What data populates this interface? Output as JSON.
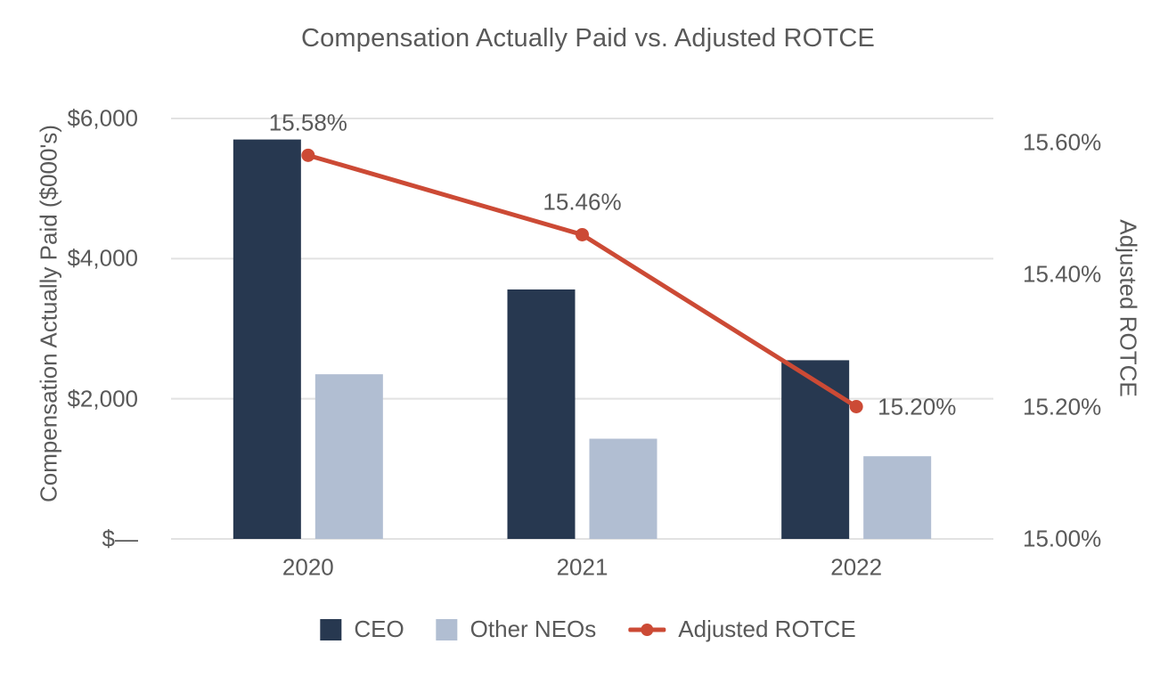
{
  "title": "Compensation Actually Paid vs. Adjusted ROTCE",
  "colors": {
    "ceo_bar": "#273850",
    "other_neos_bar": "#b1bed2",
    "rotce_line": "#cc4a35",
    "text": "#595959",
    "gridline": "#e2e2e2"
  },
  "chart_data": {
    "type": "bar+line combo",
    "title": "Compensation Actually Paid vs. Adjusted ROTCE",
    "categories": [
      "2020",
      "2021",
      "2022"
    ],
    "series": [
      {
        "name": "CEO",
        "type": "bar",
        "axis": "left",
        "color": "#273850",
        "values": [
          5700,
          3560,
          2550
        ]
      },
      {
        "name": "Other NEOs",
        "type": "bar",
        "axis": "left",
        "color": "#b1bed2",
        "values": [
          2350,
          1430,
          1180
        ]
      },
      {
        "name": "Adjusted ROTCE",
        "type": "line",
        "axis": "right",
        "color": "#cc4a35",
        "values": [
          15.58,
          15.46,
          15.2
        ],
        "point_labels": [
          "15.58%",
          "15.46%",
          "15.20%"
        ],
        "point_label_positions": [
          "above",
          "above",
          "right"
        ]
      }
    ],
    "left_axis": {
      "title": "Compensation Actually Paid ($000's)",
      "tick_labels": [
        "$—",
        "$2,000",
        "$4,000",
        "$6,000"
      ],
      "tick_values": [
        0,
        2000,
        4000,
        6000
      ],
      "range": [
        0,
        6000
      ]
    },
    "right_axis": {
      "title": "Adjusted ROTCE",
      "tick_labels": [
        "15.00%",
        "15.20%",
        "15.40%",
        "15.60%"
      ],
      "tick_values": [
        15.0,
        15.2,
        15.4,
        15.6
      ],
      "range": [
        15.0,
        15.64
      ]
    },
    "grid": "horizontal",
    "legend_position": "bottom"
  },
  "legend": {
    "items": [
      {
        "label": "CEO",
        "swatch": "square",
        "color": "#273850"
      },
      {
        "label": "Other NEOs",
        "swatch": "square",
        "color": "#b1bed2"
      },
      {
        "label": "Adjusted ROTCE",
        "swatch": "line-dot",
        "color": "#cc4a35"
      }
    ]
  }
}
